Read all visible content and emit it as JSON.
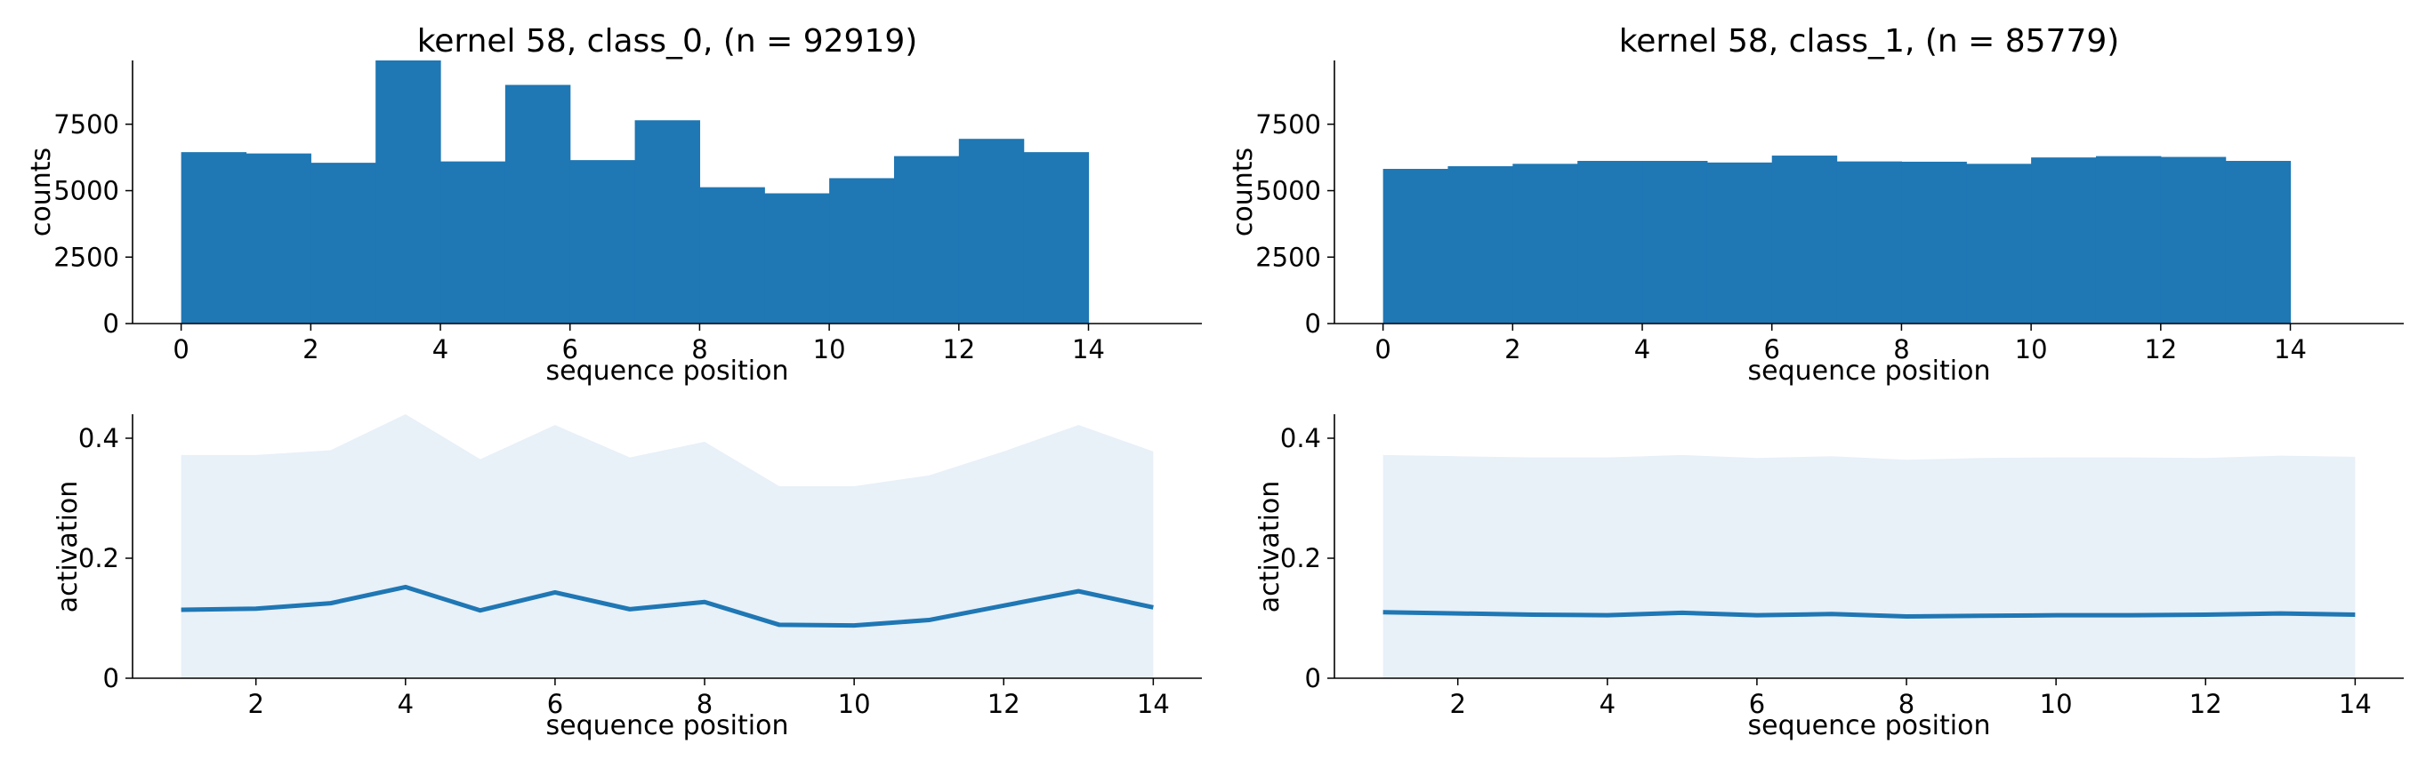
{
  "chart_data": [
    {
      "type": "bar",
      "title": "kernel 58, class_0, (n = 92919)",
      "xlabel": "sequence position",
      "ylabel": "counts",
      "xlim": [
        -0.75,
        15.75
      ],
      "ylim": [
        0,
        9900
      ],
      "xticks": [
        0,
        2,
        4,
        6,
        8,
        10,
        12,
        14
      ],
      "yticks": [
        0,
        2500,
        5000,
        7500
      ],
      "bin_edges": [
        0,
        1,
        2,
        3,
        4,
        5,
        6,
        7,
        8,
        9,
        10,
        11,
        12,
        13,
        14
      ],
      "values": [
        6450,
        6400,
        6050,
        9900,
        6100,
        8980,
        6150,
        7650,
        5130,
        4900,
        5470,
        6300,
        6950,
        6450
      ],
      "color": "#1f77b4",
      "grid": false
    },
    {
      "type": "bar",
      "title": "kernel 58, class_1, (n = 85779)",
      "xlabel": "sequence position",
      "ylabel": "counts",
      "xlim": [
        -0.75,
        15.75
      ],
      "ylim": [
        0,
        9900
      ],
      "xticks": [
        0,
        2,
        4,
        6,
        8,
        10,
        12,
        14
      ],
      "yticks": [
        0,
        2500,
        5000,
        7500
      ],
      "bin_edges": [
        0,
        1,
        2,
        3,
        4,
        5,
        6,
        7,
        8,
        9,
        10,
        11,
        12,
        13,
        14
      ],
      "values": [
        5820,
        5920,
        6010,
        6120,
        6120,
        6060,
        6320,
        6100,
        6090,
        6010,
        6250,
        6300,
        6270,
        6120
      ],
      "color": "#1f77b4",
      "grid": false
    },
    {
      "type": "line",
      "title": "",
      "xlabel": "sequence position",
      "ylabel": "activation",
      "xlim": [
        0.35,
        14.65
      ],
      "ylim": [
        0,
        0.44
      ],
      "xticks": [
        2,
        4,
        6,
        8,
        10,
        12,
        14
      ],
      "yticks": [
        0.0,
        0.2,
        0.4
      ],
      "x": [
        1,
        2,
        3,
        4,
        5,
        6,
        7,
        8,
        9,
        10,
        11,
        12,
        13,
        14
      ],
      "y": [
        0.114,
        0.116,
        0.125,
        0.152,
        0.113,
        0.143,
        0.115,
        0.127,
        0.089,
        0.088,
        0.097,
        0.121,
        0.145,
        0.118
      ],
      "band_upper": [
        0.372,
        0.372,
        0.38,
        0.44,
        0.365,
        0.422,
        0.368,
        0.394,
        0.32,
        0.32,
        0.338,
        0.378,
        0.422,
        0.378
      ],
      "band_lower": [
        0,
        0,
        0,
        0,
        0,
        0,
        0,
        0,
        0,
        0,
        0,
        0,
        0,
        0
      ],
      "line_color": "#1f77b4",
      "band_color": "#e8f0f8",
      "grid": false
    },
    {
      "type": "line",
      "title": "",
      "xlabel": "sequence position",
      "ylabel": "activation",
      "xlim": [
        0.35,
        14.65
      ],
      "ylim": [
        0,
        0.44
      ],
      "xticks": [
        2,
        4,
        6,
        8,
        10,
        12,
        14
      ],
      "yticks": [
        0.0,
        0.2,
        0.4
      ],
      "x": [
        1,
        2,
        3,
        4,
        5,
        6,
        7,
        8,
        9,
        10,
        11,
        12,
        13,
        14
      ],
      "y": [
        0.11,
        0.108,
        0.106,
        0.105,
        0.109,
        0.105,
        0.107,
        0.103,
        0.104,
        0.105,
        0.105,
        0.106,
        0.108,
        0.106
      ],
      "band_upper": [
        0.372,
        0.37,
        0.368,
        0.368,
        0.372,
        0.367,
        0.37,
        0.364,
        0.367,
        0.368,
        0.368,
        0.367,
        0.371,
        0.369
      ],
      "band_lower": [
        0,
        0,
        0,
        0,
        0,
        0,
        0,
        0,
        0,
        0,
        0,
        0,
        0,
        0
      ],
      "line_color": "#1f77b4",
      "band_color": "#e8f0f8",
      "grid": false
    }
  ]
}
